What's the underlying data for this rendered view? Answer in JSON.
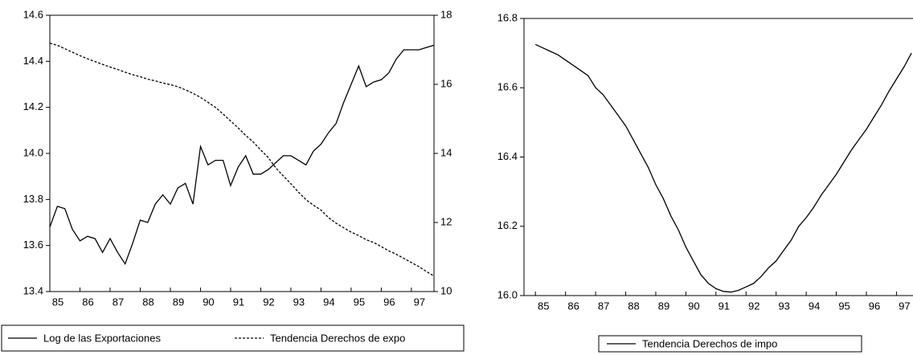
{
  "chart_data": [
    {
      "type": "line",
      "x": [
        85,
        85.25,
        85.5,
        85.75,
        86,
        86.25,
        86.5,
        86.75,
        87,
        87.25,
        87.5,
        87.75,
        88,
        88.25,
        88.5,
        88.75,
        89,
        89.25,
        89.5,
        89.75,
        90,
        90.25,
        90.5,
        90.75,
        91,
        91.25,
        91.5,
        91.75,
        92,
        92.25,
        92.5,
        92.75,
        93,
        93.25,
        93.5,
        93.75,
        94,
        94.25,
        94.5,
        94.75,
        95,
        95.25,
        95.5,
        95.75,
        96,
        96.25,
        96.5,
        96.75,
        97,
        97.25,
        97.5,
        97.75
      ],
      "xlim": [
        85,
        97.75
      ],
      "xticks": [
        85,
        86,
        87,
        88,
        89,
        90,
        91,
        92,
        93,
        94,
        95,
        96,
        97
      ],
      "ylim": [
        13.4,
        14.6
      ],
      "yticks": [
        13.4,
        13.6,
        13.8,
        {
          "value": 14,
          "label": "14.0"
        },
        14.2,
        14.4,
        14.6
      ],
      "y2lim": [
        10,
        18
      ],
      "y2ticks": [
        10,
        12,
        14,
        16,
        18
      ],
      "series": [
        {
          "name": "Log de las Exportaciones",
          "color": "#000000",
          "style": "solid",
          "values": [
            13.68,
            13.77,
            13.76,
            13.67,
            13.62,
            13.64,
            13.63,
            13.57,
            13.63,
            13.57,
            13.52,
            13.61,
            13.71,
            13.7,
            13.78,
            13.82,
            13.78,
            13.85,
            13.87,
            13.78,
            14.03,
            13.95,
            13.97,
            13.97,
            13.86,
            13.94,
            13.99,
            13.91,
            13.91,
            13.93,
            13.96,
            13.99,
            13.99,
            13.97,
            13.95,
            14.01,
            14.04,
            14.09,
            14.13,
            14.22,
            14.3,
            14.38,
            14.29,
            14.31,
            14.32,
            14.35,
            14.41,
            14.45,
            14.45,
            14.45,
            14.46,
            14.47
          ]
        },
        {
          "name": "Tendencia Derechos de expo",
          "color": "#000000",
          "style": "dashed",
          "axis": "y2",
          "values": [
            17.19,
            17.13,
            17.03,
            16.93,
            16.83,
            16.74,
            16.66,
            16.58,
            16.5,
            16.43,
            16.35,
            16.28,
            16.22,
            16.15,
            16.1,
            16.04,
            15.99,
            15.93,
            15.84,
            15.74,
            15.62,
            15.48,
            15.33,
            15.14,
            14.94,
            14.74,
            14.52,
            14.33,
            14.1,
            13.88,
            13.58,
            13.35,
            13.12,
            12.88,
            12.66,
            12.5,
            12.36,
            12.14,
            11.98,
            11.85,
            11.72,
            11.62,
            11.5,
            11.42,
            11.3,
            11.18,
            11.08,
            10.96,
            10.84,
            10.72,
            10.58,
            10.45
          ]
        }
      ]
    },
    {
      "type": "line",
      "x": [
        85,
        85.25,
        85.5,
        85.75,
        86,
        86.25,
        86.5,
        86.75,
        87,
        87.25,
        87.5,
        87.75,
        88,
        88.25,
        88.5,
        88.75,
        89,
        89.25,
        89.5,
        89.75,
        90,
        90.25,
        90.5,
        90.75,
        91,
        91.25,
        91.5,
        91.75,
        92,
        92.25,
        92.5,
        92.75,
        93,
        93.25,
        93.5,
        93.75,
        94,
        94.25,
        94.5,
        94.75,
        95,
        95.25,
        95.5,
        95.75,
        96,
        96.25,
        96.5,
        96.75,
        97,
        97.25,
        97.5
      ],
      "xlim": [
        84.62,
        97.55
      ],
      "xticks": [
        85,
        86,
        87,
        88,
        89,
        90,
        91,
        92,
        93,
        94,
        95,
        96,
        97
      ],
      "ylim": [
        16,
        16.8
      ],
      "yticks": [
        {
          "value": 16,
          "label": "16.0"
        },
        16.2,
        16.4,
        16.6,
        16.8
      ],
      "series": [
        {
          "name": "Tendencia Derechos de impo",
          "color": "#000000",
          "style": "solid",
          "values": [
            16.725,
            16.715,
            16.705,
            16.695,
            16.68,
            16.665,
            16.65,
            16.635,
            16.6,
            16.58,
            16.55,
            16.52,
            16.49,
            16.45,
            16.41,
            16.37,
            16.32,
            16.28,
            16.23,
            16.19,
            16.14,
            16.1,
            16.06,
            16.035,
            16.02,
            16.012,
            16.01,
            16.015,
            16.025,
            16.035,
            16.055,
            16.08,
            16.1,
            16.13,
            16.16,
            16.2,
            16.225,
            16.255,
            16.29,
            16.32,
            16.35,
            16.385,
            16.42,
            16.45,
            16.48,
            16.515,
            16.55,
            16.59,
            16.625,
            16.66,
            16.7
          ]
        }
      ]
    }
  ]
}
